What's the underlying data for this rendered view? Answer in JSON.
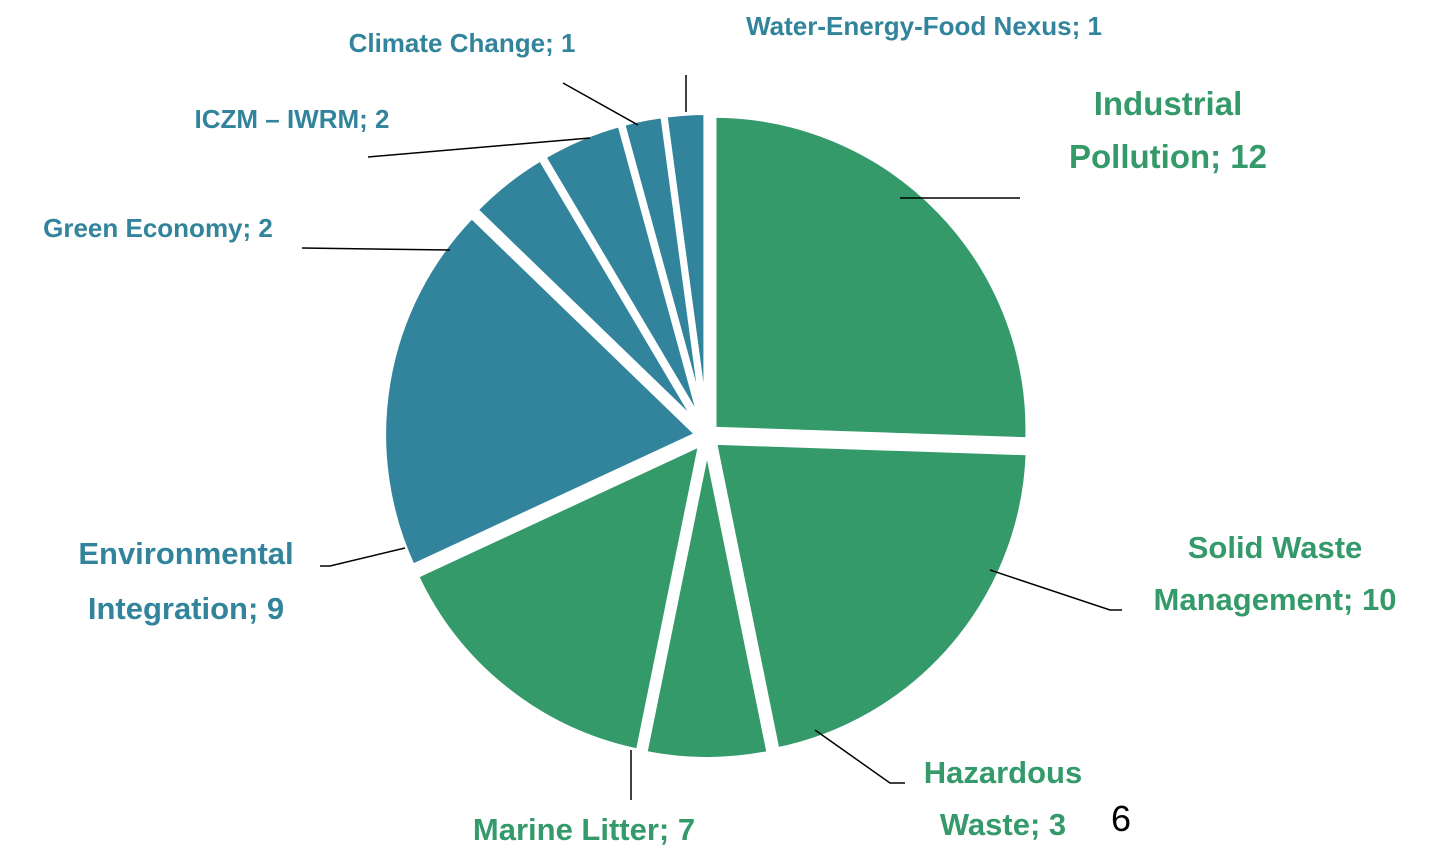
{
  "chart_data": {
    "type": "pie",
    "title": "",
    "slices": [
      {
        "label": "Industrial Pollution",
        "value": 12,
        "color": "#349A69",
        "text_lines": [
          "Industrial",
          "Pollution; 12"
        ]
      },
      {
        "label": "Solid Waste Management",
        "value": 10,
        "color": "#349A69",
        "text_lines": [
          "Solid Waste",
          "Management; 10"
        ]
      },
      {
        "label": "Hazardous Waste",
        "value": 3,
        "color": "#349A69",
        "text_lines": [
          "Hazardous",
          "Waste; 3"
        ]
      },
      {
        "label": "Marine Litter",
        "value": 7,
        "color": "#349A69",
        "text_lines": [
          "Marine Litter; 7"
        ]
      },
      {
        "label": "Environmental Integration",
        "value": 9,
        "color": "#31849B",
        "text_lines": [
          "Environmental",
          "Integration; 9"
        ]
      },
      {
        "label": "Green Economy",
        "value": 2,
        "color": "#31849B",
        "text_lines": [
          "Green Economy; 2"
        ]
      },
      {
        "label": "ICZM – IWRM",
        "value": 2,
        "color": "#31849B",
        "text_lines": [
          "ICZM – IWRM; 2"
        ]
      },
      {
        "label": "Climate Change",
        "value": 1,
        "color": "#31849B",
        "text_lines": [
          "Climate Change; 1"
        ]
      },
      {
        "label": "Water-Energy-Food Nexus",
        "value": 1,
        "color": "#31849B",
        "text_lines": [
          "Water-Energy-Food Nexus; 1"
        ]
      }
    ],
    "legend": "none"
  },
  "page_number": "6"
}
